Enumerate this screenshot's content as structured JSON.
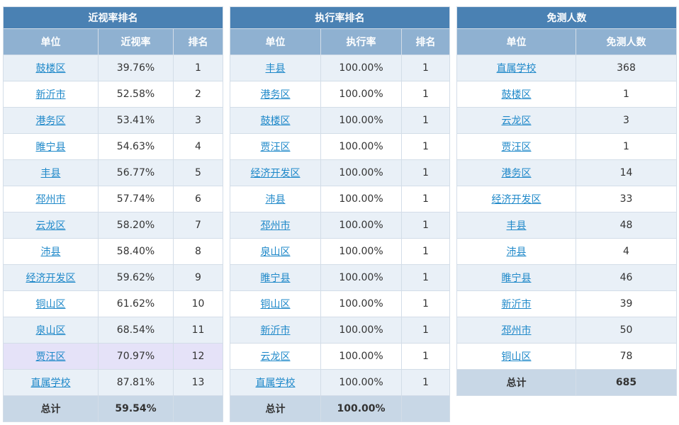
{
  "myopia": {
    "title": "近视率排名",
    "headers": [
      "单位",
      "近视率",
      "排名"
    ],
    "rows": [
      {
        "unit": "鼓楼区",
        "rate": "39.76%",
        "rank": "1"
      },
      {
        "unit": "新沂市",
        "rate": "52.58%",
        "rank": "2"
      },
      {
        "unit": "港务区",
        "rate": "53.41%",
        "rank": "3"
      },
      {
        "unit": "睢宁县",
        "rate": "54.63%",
        "rank": "4"
      },
      {
        "unit": "丰县",
        "rate": "56.77%",
        "rank": "5"
      },
      {
        "unit": "邳州市",
        "rate": "57.74%",
        "rank": "6"
      },
      {
        "unit": "云龙区",
        "rate": "58.20%",
        "rank": "7"
      },
      {
        "unit": "沛县",
        "rate": "58.40%",
        "rank": "8"
      },
      {
        "unit": "经济开发区",
        "rate": "59.62%",
        "rank": "9"
      },
      {
        "unit": "铜山区",
        "rate": "61.62%",
        "rank": "10"
      },
      {
        "unit": "泉山区",
        "rate": "68.54%",
        "rank": "11"
      },
      {
        "unit": "贾汪区",
        "rate": "70.97%",
        "rank": "12"
      },
      {
        "unit": "直属学校",
        "rate": "87.81%",
        "rank": "13"
      }
    ],
    "total": {
      "label": "总计",
      "rate": "59.54%",
      "rank": ""
    }
  },
  "execution": {
    "title": "执行率排名",
    "headers": [
      "单位",
      "执行率",
      "排名"
    ],
    "rows": [
      {
        "unit": "丰县",
        "rate": "100.00%",
        "rank": "1"
      },
      {
        "unit": "港务区",
        "rate": "100.00%",
        "rank": "1"
      },
      {
        "unit": "鼓楼区",
        "rate": "100.00%",
        "rank": "1"
      },
      {
        "unit": "贾汪区",
        "rate": "100.00%",
        "rank": "1"
      },
      {
        "unit": "经济开发区",
        "rate": "100.00%",
        "rank": "1"
      },
      {
        "unit": "沛县",
        "rate": "100.00%",
        "rank": "1"
      },
      {
        "unit": "邳州市",
        "rate": "100.00%",
        "rank": "1"
      },
      {
        "unit": "泉山区",
        "rate": "100.00%",
        "rank": "1"
      },
      {
        "unit": "睢宁县",
        "rate": "100.00%",
        "rank": "1"
      },
      {
        "unit": "铜山区",
        "rate": "100.00%",
        "rank": "1"
      },
      {
        "unit": "新沂市",
        "rate": "100.00%",
        "rank": "1"
      },
      {
        "unit": "云龙区",
        "rate": "100.00%",
        "rank": "1"
      },
      {
        "unit": "直属学校",
        "rate": "100.00%",
        "rank": "1"
      }
    ],
    "total": {
      "label": "总计",
      "rate": "100.00%",
      "rank": ""
    }
  },
  "exempt": {
    "title": "免测人数",
    "headers": [
      "单位",
      "免测人数"
    ],
    "rows": [
      {
        "unit": "直属学校",
        "count": "368"
      },
      {
        "unit": "鼓楼区",
        "count": "1"
      },
      {
        "unit": "云龙区",
        "count": "3"
      },
      {
        "unit": "贾汪区",
        "count": "1"
      },
      {
        "unit": "港务区",
        "count": "14"
      },
      {
        "unit": "经济开发区",
        "count": "33"
      },
      {
        "unit": "丰县",
        "count": "48"
      },
      {
        "unit": "沛县",
        "count": "4"
      },
      {
        "unit": "睢宁县",
        "count": "46"
      },
      {
        "unit": "新沂市",
        "count": "39"
      },
      {
        "unit": "邳州市",
        "count": "50"
      },
      {
        "unit": "铜山区",
        "count": "78"
      }
    ],
    "total": {
      "label": "总计",
      "count": "685"
    }
  },
  "highlight_color": "#e5e2f8",
  "header_color": "#4a81b3",
  "subheader_color": "#8fb1d1",
  "link_color": "#1e88c9"
}
